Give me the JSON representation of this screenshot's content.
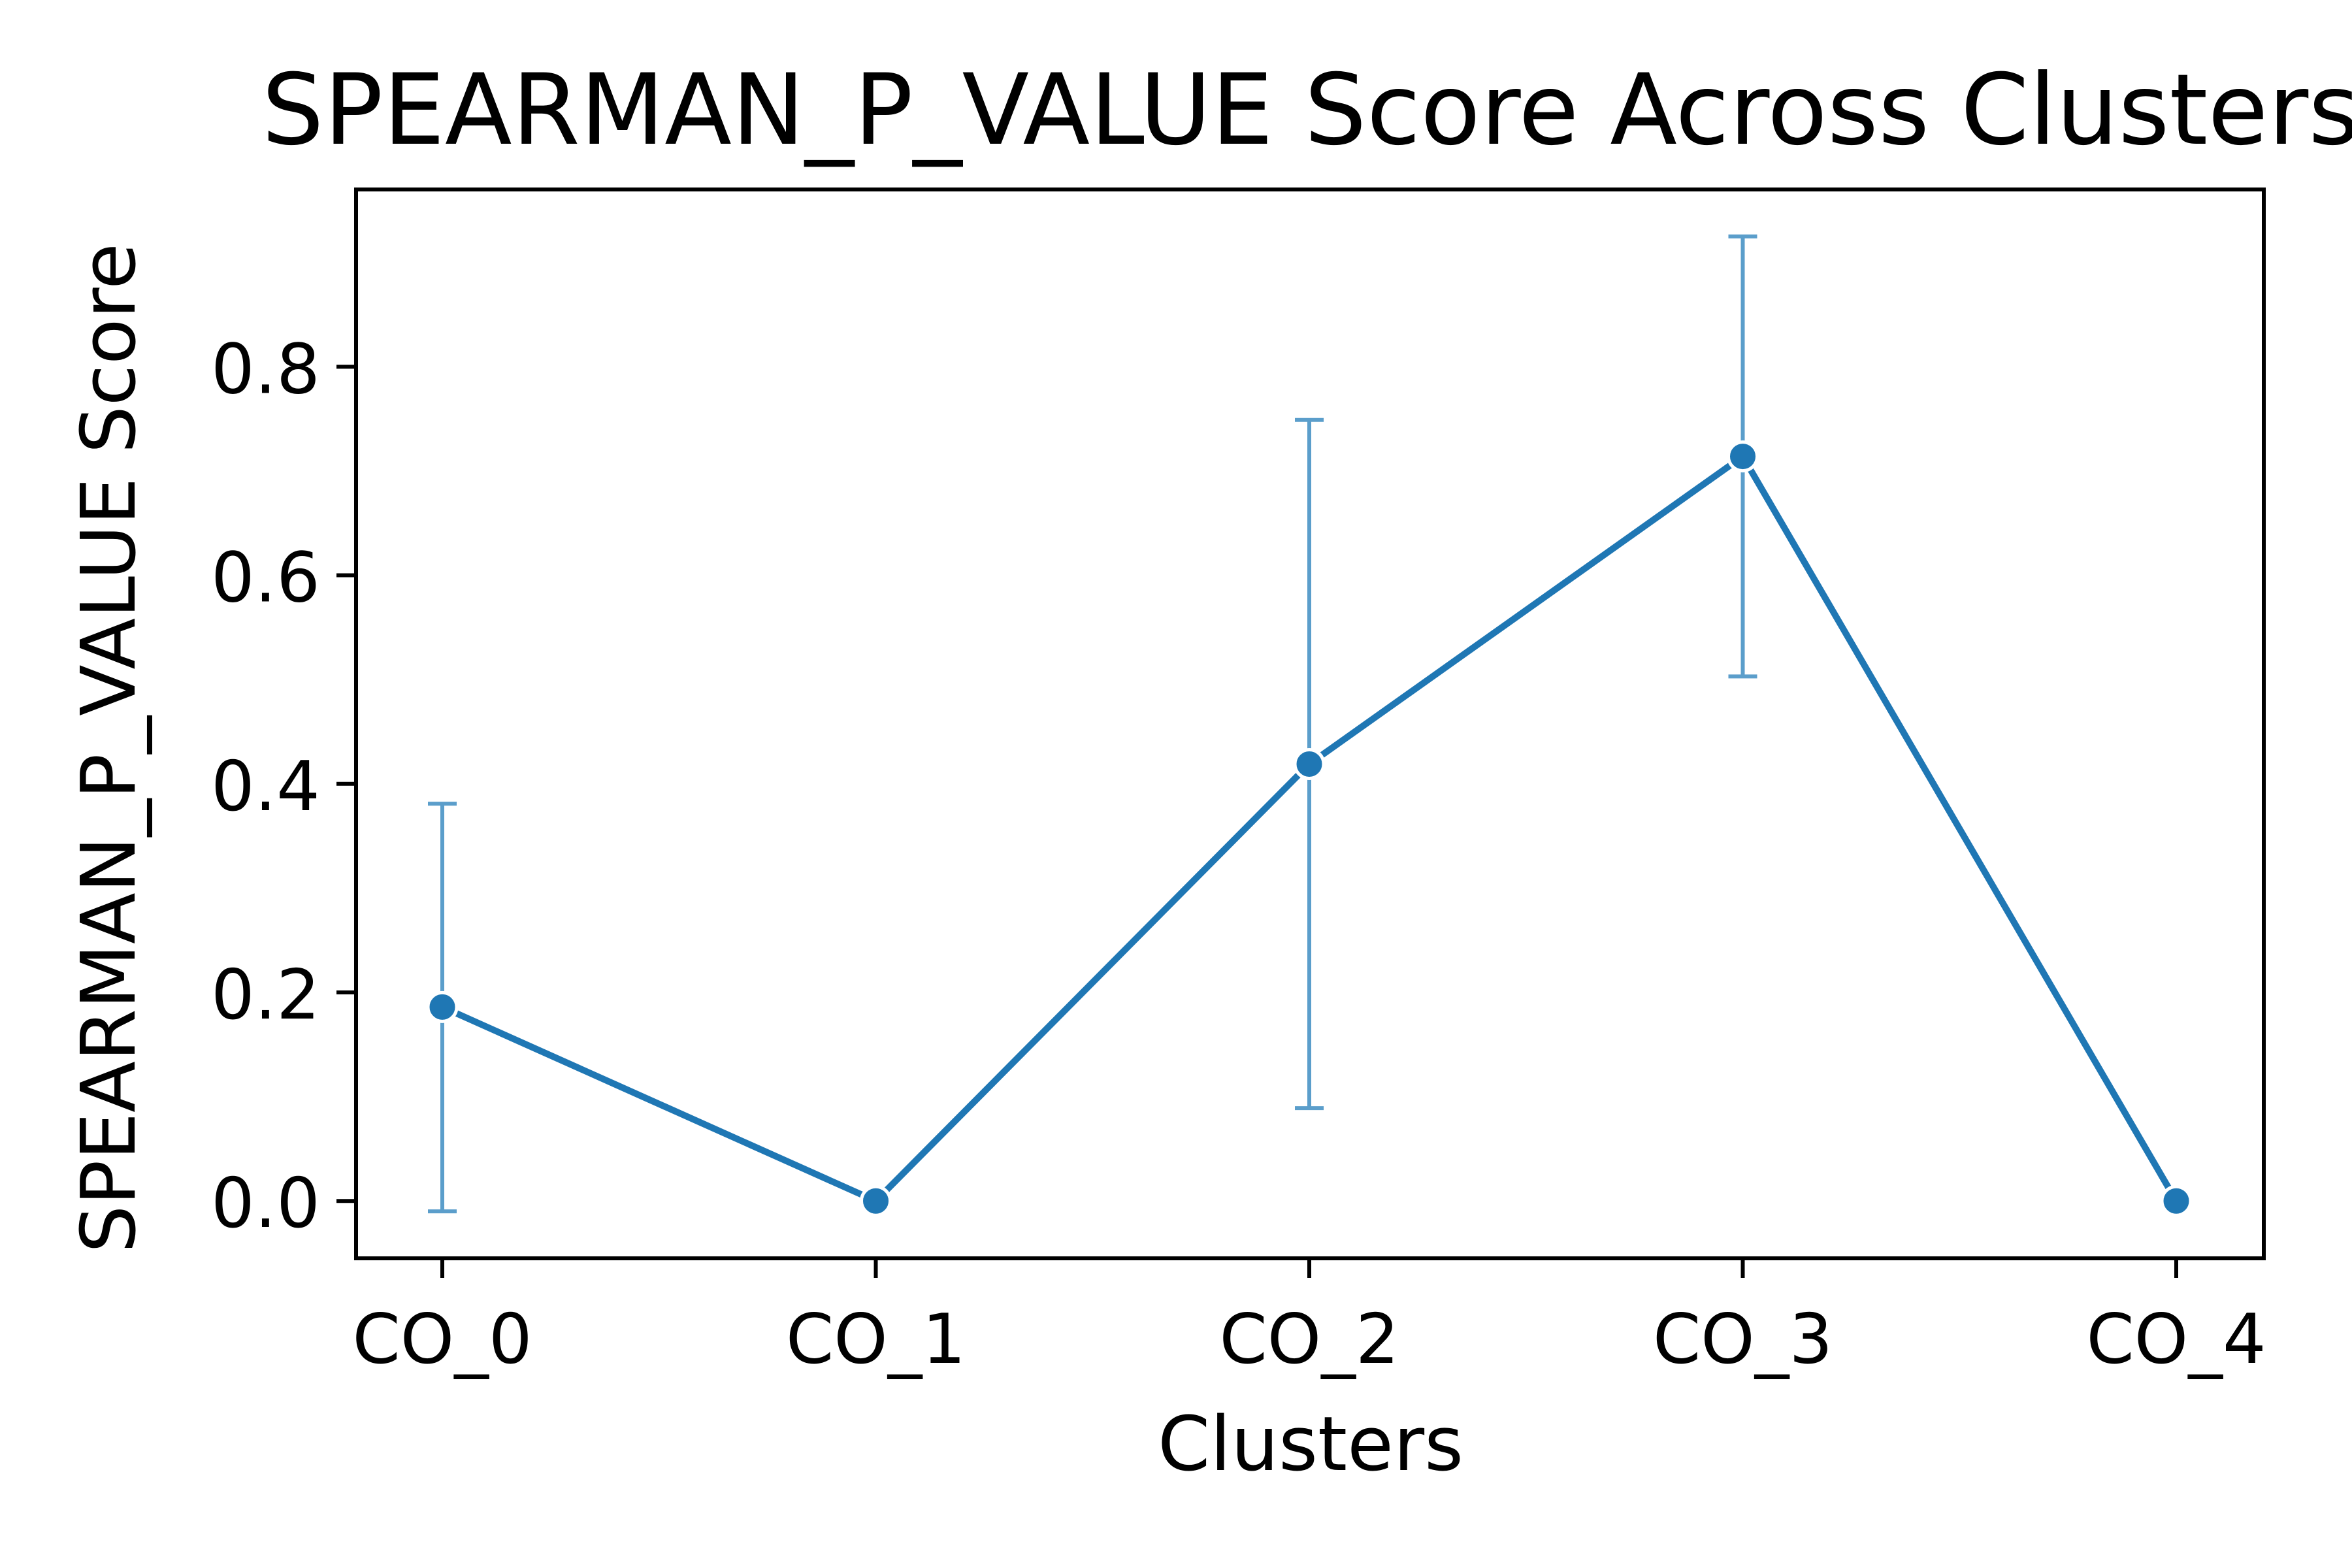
{
  "chart_data": {
    "type": "line",
    "title": "SPEARMAN_P_VALUE Score Across Clusters",
    "xlabel": "Clusters",
    "ylabel": "SPEARMAN_P_VALUE Score",
    "categories": [
      "CO_0",
      "CO_1",
      "CO_2",
      "CO_3",
      "CO_4"
    ],
    "series": [
      {
        "values": [
          0.186,
          0.0,
          0.419,
          0.714,
          0.0
        ],
        "error_low": [
          -0.01,
          0.0,
          0.089,
          0.503,
          0.0
        ],
        "error_high": [
          0.381,
          0.0,
          0.749,
          0.925,
          0.0
        ]
      }
    ],
    "ylim": [
      -0.055,
      0.97
    ],
    "yticks": [
      0.0,
      0.2,
      0.4,
      0.6,
      0.8
    ],
    "ytick_labels": [
      "0.0",
      "0.2",
      "0.4",
      "0.6",
      "0.8"
    ],
    "grid": false,
    "colors": {
      "line": "#1f77b4",
      "errorbar": "#5b9ecb",
      "marker_edge": "#ffffff"
    }
  }
}
